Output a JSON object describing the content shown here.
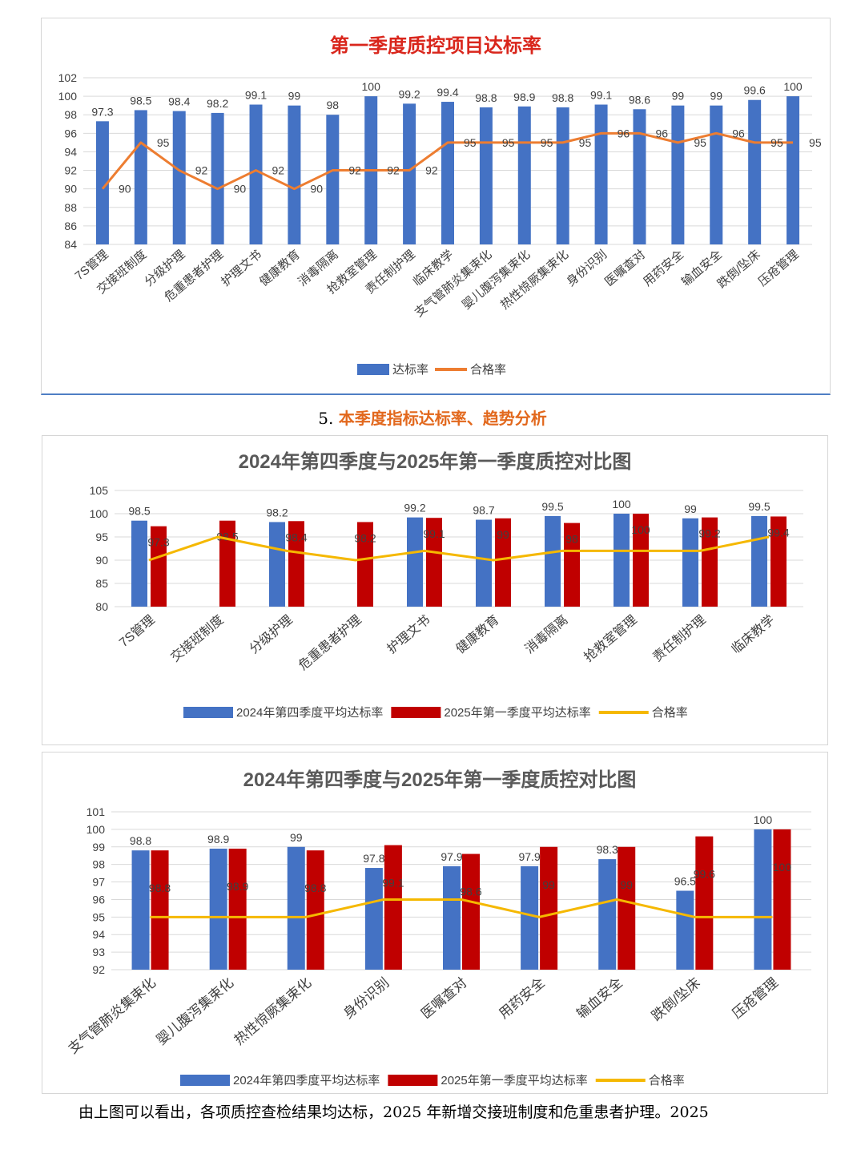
{
  "section_heading": {
    "number": "5.",
    "text": "本季度指标达标率、趋势分析"
  },
  "conclusion": "由上图可以看出，各项质控查检结果均达标，2025 年新增交接班制度和危重患者护理。2025",
  "chart_data": [
    {
      "type": "bar",
      "title": "第一季度质控项目达标率",
      "title_color": "#d9261c",
      "categories": [
        "7S管理",
        "交接班制度",
        "分级护理",
        "危重患者护理",
        "护理文书",
        "健康教育",
        "消毒隔离",
        "抢救室管理",
        "责任制护理",
        "临床教学",
        "支气管肺炎集束化",
        "婴儿腹泻集束化",
        "热性惊厥集束化",
        "身份识别",
        "医嘱查对",
        "用药安全",
        "输血安全",
        "跌倒/坠床",
        "压疮管理"
      ],
      "series": [
        {
          "name": "达标率",
          "kind": "bar",
          "color": "#4472c4",
          "values": [
            97.3,
            98.5,
            98.4,
            98.2,
            99.1,
            99,
            98,
            100,
            99.2,
            99.4,
            98.8,
            98.9,
            98.8,
            99.1,
            98.6,
            99,
            99,
            99.6,
            100
          ]
        },
        {
          "name": "合格率",
          "kind": "line",
          "color": "#ed7d31",
          "values": [
            90,
            95,
            92,
            90,
            92,
            90,
            92,
            92,
            92,
            95,
            95,
            95,
            95,
            96,
            96,
            95,
            96,
            95,
            95
          ]
        }
      ],
      "ylim": [
        84,
        102
      ],
      "yticks": [
        84,
        86,
        88,
        90,
        92,
        94,
        96,
        98,
        100,
        102
      ],
      "grid": true,
      "legend_position": "bottom"
    },
    {
      "type": "bar",
      "title": "2024年第四季度与2025年第一季度质控对比图",
      "title_color": "#595959",
      "categories": [
        "7S管理",
        "交接班制度",
        "分级护理",
        "危重患者护理",
        "护理文书",
        "健康教育",
        "消毒隔离",
        "抢救室管理",
        "责任制护理",
        "临床教学"
      ],
      "series": [
        {
          "name": "2024年第四季度平均达标率",
          "kind": "bar",
          "color": "#4472c4",
          "values": [
            98.5,
            null,
            98.2,
            null,
            99.2,
            98.7,
            99.5,
            100,
            99,
            99.5
          ],
          "labels": [
            "98.5",
            "",
            "98.2",
            "",
            "99.2",
            "98.7",
            "99.5",
            "100",
            "99",
            "99.5"
          ]
        },
        {
          "name": "2025年第一季度平均达标率",
          "kind": "bar",
          "color": "#c00000",
          "values": [
            97.3,
            98.5,
            98.4,
            98.2,
            99.1,
            99,
            98,
            100,
            99.2,
            99.4
          ],
          "labels": [
            "97.3",
            "98.5",
            "98.4",
            "98.2",
            "99.1",
            "99",
            "98",
            "100",
            "99.2",
            "99.4"
          ]
        },
        {
          "name": "合格率",
          "kind": "line",
          "color": "#f5b800",
          "values": [
            90,
            95,
            92,
            90,
            92,
            90,
            92,
            92,
            92,
            95
          ]
        }
      ],
      "ylim": [
        80,
        105
      ],
      "yticks": [
        80,
        85,
        90,
        95,
        100,
        105
      ],
      "grid": true,
      "legend_position": "bottom"
    },
    {
      "type": "bar",
      "title": "2024年第四季度与2025年第一季度质控对比图",
      "title_color": "#595959",
      "categories": [
        "支气管肺炎集束化",
        "婴儿腹泻集束化",
        "热性惊厥集束化",
        "身份识别",
        "医嘱查对",
        "用药安全",
        "输血安全",
        "跌倒/坠床",
        "压疮管理"
      ],
      "series": [
        {
          "name": "2024年第四季度平均达标率",
          "kind": "bar",
          "color": "#4472c4",
          "values": [
            98.8,
            98.9,
            99,
            97.8,
            97.9,
            97.9,
            98.3,
            96.5,
            100
          ],
          "labels": [
            "98.8",
            "98.9",
            "99",
            "97.8",
            "97.9",
            "97.9",
            "98.3",
            "96.5",
            "100"
          ]
        },
        {
          "name": "2025年第一季度平均达标率",
          "kind": "bar",
          "color": "#c00000",
          "values": [
            98.8,
            98.9,
            98.8,
            99.1,
            98.6,
            99,
            99,
            99.6,
            100
          ],
          "labels": [
            "98.8",
            "98.9",
            "98.8",
            "99.1",
            "98.6",
            "99",
            "99",
            "99.6",
            "100"
          ]
        },
        {
          "name": "合格率",
          "kind": "line",
          "color": "#f5b800",
          "values": [
            95,
            95,
            95,
            96,
            96,
            95,
            96,
            95,
            95
          ]
        }
      ],
      "ylim": [
        92,
        101
      ],
      "yticks": [
        92,
        93,
        94,
        95,
        96,
        97,
        98,
        99,
        100,
        101
      ],
      "grid": true,
      "legend_position": "bottom"
    }
  ]
}
